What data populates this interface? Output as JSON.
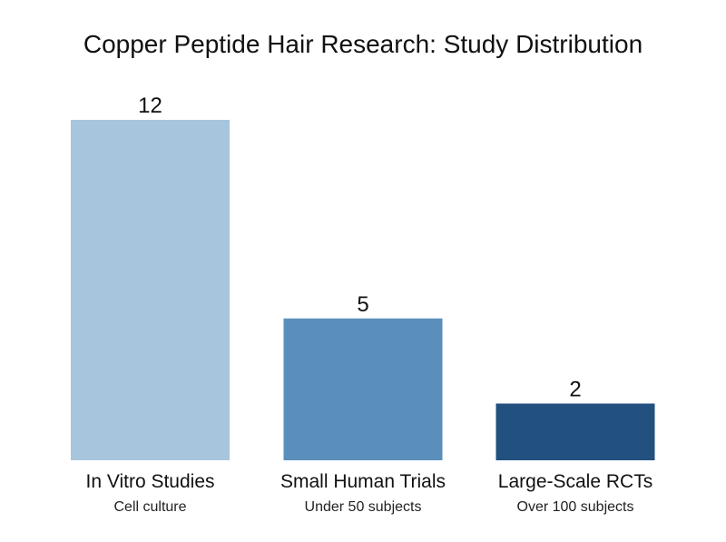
{
  "chart_data": {
    "type": "bar",
    "title": "Copper Peptide Hair Research: Study Distribution",
    "categories": [
      "In Vitro Studies",
      "Small Human Trials",
      "Large-Scale RCTs"
    ],
    "subtitles": [
      "Cell culture",
      "Under 50 subjects",
      "Over 100 subjects"
    ],
    "values": [
      12,
      5,
      2
    ],
    "value_labels": [
      "12",
      "5",
      "2"
    ],
    "colors": [
      "#a7c6de",
      "#5b8fbb",
      "#22507f"
    ],
    "ylim": [
      0,
      12
    ],
    "grid": false,
    "legend": "none",
    "xlabel": "",
    "ylabel": ""
  }
}
